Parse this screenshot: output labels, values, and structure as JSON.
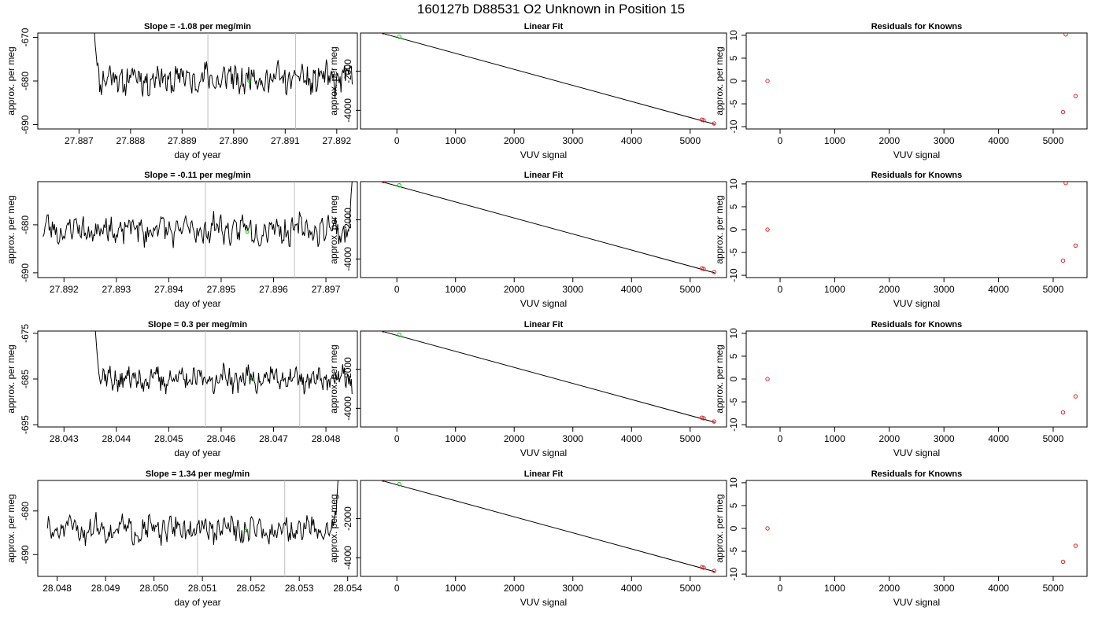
{
  "figure": {
    "title": "160127b     D88531    O2 Unknown in Position  15"
  },
  "chart_data": [
    {
      "id": "r1-drift",
      "type": "line",
      "row": 0,
      "col": 0,
      "title": "Slope =  -1.08  per meg/min",
      "xlabel": "day of year",
      "ylabel": "approx. per meg",
      "xlim": [
        27.8862,
        27.8924
      ],
      "ylim": [
        -691,
        -669
      ],
      "xticks": [
        27.887,
        27.888,
        27.889,
        27.89,
        27.891,
        27.892
      ],
      "xtick_labels": [
        "27.887",
        "27.888",
        "27.889",
        "27.890",
        "27.891",
        "27.892"
      ],
      "yticks": [
        -690,
        -680,
        -670
      ],
      "ytick_labels": [
        "-690",
        "-680",
        "-670"
      ],
      "x_start": 27.8873,
      "x_end": 27.8923,
      "start_value": -669.0,
      "start_len": 8,
      "end_value": null,
      "baseline": -679.5,
      "amplitude": 2.3,
      "seed": 11,
      "vlines": [
        27.8895,
        27.8912
      ],
      "green_point": {
        "x": 27.8903,
        "y": -680.0
      }
    },
    {
      "id": "r1-fit",
      "type": "scatter",
      "row": 0,
      "col": 1,
      "title": "Linear Fit",
      "xlabel": "VUV signal",
      "ylabel": "approx. per meg",
      "xlim": [
        -620,
        5620
      ],
      "ylim": [
        -4950,
        -50
      ],
      "xticks": [
        0,
        1000,
        2000,
        3000,
        4000,
        5000
      ],
      "xtick_labels": [
        "0",
        "1000",
        "2000",
        "3000",
        "4000",
        "5000"
      ],
      "yticks": [
        -4000,
        -2000
      ],
      "ytick_labels": [
        "-4000",
        "-2000"
      ],
      "line": {
        "x": [
          -510,
          5420
        ],
        "y": [
          150,
          -4710
        ]
      },
      "known_points": [
        {
          "x": -230,
          "y": -20
        },
        {
          "x": 5200,
          "y": -4475
        },
        {
          "x": 5230,
          "y": -4505
        },
        {
          "x": 5410,
          "y": -4670
        }
      ],
      "unknown_points": [
        {
          "x": 40,
          "y": -240
        }
      ]
    },
    {
      "id": "r1-resid",
      "type": "scatter",
      "row": 0,
      "col": 2,
      "title": "Residuals for Knowns",
      "xlabel": "VUV signal",
      "ylabel": "approx. per meg",
      "xlim": [
        -620,
        5620
      ],
      "ylim": [
        -10.5,
        10.5
      ],
      "xticks": [
        0,
        1000,
        2000,
        3000,
        4000,
        5000
      ],
      "xtick_labels": [
        "0",
        "1000",
        "2000",
        "3000",
        "4000",
        "5000"
      ],
      "yticks": [
        -10,
        -5,
        0,
        5,
        10
      ],
      "ytick_labels": [
        "-10",
        "-5",
        "0",
        "5",
        "10"
      ],
      "points": [
        {
          "x": -230,
          "y": 0.0
        },
        {
          "x": 5230,
          "y": 10.2
        },
        {
          "x": 5180,
          "y": -6.8
        },
        {
          "x": 5410,
          "y": -3.3
        }
      ]
    },
    {
      "id": "r2-drift",
      "type": "line",
      "row": 1,
      "col": 0,
      "title": "Slope =  -0.11  per meg/min",
      "xlabel": "day of year",
      "ylabel": "approx. per meg",
      "xlim": [
        27.8915,
        27.8976
      ],
      "ylim": [
        -691,
        -671
      ],
      "xticks": [
        27.892,
        27.893,
        27.894,
        27.895,
        27.896,
        27.897
      ],
      "xtick_labels": [
        "27.892",
        "27.893",
        "27.894",
        "27.895",
        "27.896",
        "27.897"
      ],
      "yticks": [
        -690,
        -680
      ],
      "ytick_labels": [
        "-690",
        "-680"
      ],
      "x_start": 27.8916,
      "x_end": 27.8975,
      "start_value": null,
      "end_value": -671,
      "end_len": 5,
      "baseline": -681.0,
      "amplitude": 2.0,
      "seed": 23,
      "vlines": [
        27.8947,
        27.8964
      ],
      "green_point": {
        "x": 27.8955,
        "y": -681.5
      }
    },
    {
      "id": "r2-fit",
      "type": "scatter",
      "row": 1,
      "col": 1,
      "title": "Linear Fit",
      "xlabel": "VUV signal",
      "ylabel": "approx. per meg",
      "xlim": [
        -620,
        5620
      ],
      "ylim": [
        -4950,
        -50
      ],
      "xticks": [
        0,
        1000,
        2000,
        3000,
        4000,
        5000
      ],
      "xtick_labels": [
        "0",
        "1000",
        "2000",
        "3000",
        "4000",
        "5000"
      ],
      "yticks": [
        -4000,
        -2000
      ],
      "ytick_labels": [
        "-4000",
        "-2000"
      ],
      "line": {
        "x": [
          -510,
          5420
        ],
        "y": [
          150,
          -4710
        ]
      },
      "known_points": [
        {
          "x": -230,
          "y": -20
        },
        {
          "x": 5200,
          "y": -4475
        },
        {
          "x": 5230,
          "y": -4505
        },
        {
          "x": 5410,
          "y": -4670
        }
      ],
      "unknown_points": [
        {
          "x": 40,
          "y": -240
        }
      ]
    },
    {
      "id": "r2-resid",
      "type": "scatter",
      "row": 1,
      "col": 2,
      "title": "Residuals for Knowns",
      "xlabel": "VUV signal",
      "ylabel": "approx. per meg",
      "xlim": [
        -620,
        5620
      ],
      "ylim": [
        -10.5,
        10.5
      ],
      "xticks": [
        0,
        1000,
        2000,
        3000,
        4000,
        5000
      ],
      "xtick_labels": [
        "0",
        "1000",
        "2000",
        "3000",
        "4000",
        "5000"
      ],
      "yticks": [
        -10,
        -5,
        0,
        5,
        10
      ],
      "ytick_labels": [
        "-10",
        "-5",
        "0",
        "5",
        "10"
      ],
      "points": [
        {
          "x": -230,
          "y": 0.0
        },
        {
          "x": 5230,
          "y": 10.2
        },
        {
          "x": 5180,
          "y": -6.8
        },
        {
          "x": 5410,
          "y": -3.5
        }
      ]
    },
    {
      "id": "r3-drift",
      "type": "line",
      "row": 2,
      "col": 0,
      "title": "Slope =  0.3  per meg/min",
      "xlabel": "day of year",
      "ylabel": "approx. per meg",
      "xlim": [
        28.0425,
        28.0486
      ],
      "ylim": [
        -695.5,
        -674.5
      ],
      "xticks": [
        28.043,
        28.044,
        28.045,
        28.046,
        28.047,
        28.048
      ],
      "xtick_labels": [
        "28.043",
        "28.044",
        "28.045",
        "28.046",
        "28.047",
        "28.048"
      ],
      "yticks": [
        -695,
        -685,
        -675
      ],
      "ytick_labels": [
        "-695",
        "-685",
        "-675"
      ],
      "x_start": 28.0436,
      "x_end": 28.0485,
      "start_value": -674.5,
      "start_len": 8,
      "end_value": null,
      "baseline": -685.0,
      "amplitude": 1.8,
      "seed": 37,
      "vlines": [
        28.0457,
        28.0475
      ],
      "green_point": {
        "x": 28.0466,
        "y": -685.0
      }
    },
    {
      "id": "r3-fit",
      "type": "scatter",
      "row": 2,
      "col": 1,
      "title": "Linear Fit",
      "xlabel": "VUV signal",
      "ylabel": "approx. per meg",
      "xlim": [
        -620,
        5620
      ],
      "ylim": [
        -4950,
        -50
      ],
      "xticks": [
        0,
        1000,
        2000,
        3000,
        4000,
        5000
      ],
      "xtick_labels": [
        "0",
        "1000",
        "2000",
        "3000",
        "4000",
        "5000"
      ],
      "yticks": [
        -4000,
        -2000
      ],
      "ytick_labels": [
        "-4000",
        "-2000"
      ],
      "line": {
        "x": [
          -510,
          5420
        ],
        "y": [
          150,
          -4710
        ]
      },
      "known_points": [
        {
          "x": -230,
          "y": -20
        },
        {
          "x": 5200,
          "y": -4475
        },
        {
          "x": 5230,
          "y": -4505
        },
        {
          "x": 5410,
          "y": -4670
        }
      ],
      "unknown_points": [
        {
          "x": 40,
          "y": -240
        }
      ]
    },
    {
      "id": "r3-resid",
      "type": "scatter",
      "row": 2,
      "col": 2,
      "title": "Residuals for Knowns",
      "xlabel": "VUV signal",
      "ylabel": "approx. per meg",
      "xlim": [
        -620,
        5620
      ],
      "ylim": [
        -10.5,
        10.5
      ],
      "xticks": [
        0,
        1000,
        2000,
        3000,
        4000,
        5000
      ],
      "xtick_labels": [
        "0",
        "1000",
        "2000",
        "3000",
        "4000",
        "5000"
      ],
      "yticks": [
        -10,
        -5,
        0,
        5,
        10
      ],
      "ytick_labels": [
        "-10",
        "-5",
        "0",
        "5",
        "10"
      ],
      "points": [
        {
          "x": -230,
          "y": 0.0
        },
        {
          "x": 5180,
          "y": -7.3
        },
        {
          "x": 5410,
          "y": -3.8
        }
      ]
    },
    {
      "id": "r4-drift",
      "type": "line",
      "row": 3,
      "col": 0,
      "title": "Slope =  1.34  per meg/min",
      "xlabel": "day of year",
      "ylabel": "approx. per meg",
      "xlim": [
        28.0476,
        28.0542
      ],
      "ylim": [
        -695,
        -673
      ],
      "xticks": [
        28.048,
        28.049,
        28.05,
        28.051,
        28.052,
        28.053,
        28.054
      ],
      "xtick_labels": [
        "28.048",
        "28.049",
        "28.050",
        "28.051",
        "28.052",
        "28.053",
        "28.054"
      ],
      "yticks": [
        -690,
        -680
      ],
      "ytick_labels": [
        "-690",
        "-680"
      ],
      "x_start": 28.0478,
      "x_end": 28.0538,
      "start_value": null,
      "end_value": -673,
      "end_len": 5,
      "baseline": -684.2,
      "amplitude": 2.0,
      "seed": 51,
      "vlines": [
        28.0509,
        28.0527
      ],
      "green_point": {
        "x": 28.0519,
        "y": -684.5
      }
    },
    {
      "id": "r4-fit",
      "type": "scatter",
      "row": 3,
      "col": 1,
      "title": "Linear Fit",
      "xlabel": "VUV signal",
      "ylabel": "approx. per meg",
      "xlim": [
        -620,
        5620
      ],
      "ylim": [
        -4950,
        -50
      ],
      "xticks": [
        0,
        1000,
        2000,
        3000,
        4000,
        5000
      ],
      "xtick_labels": [
        "0",
        "1000",
        "2000",
        "3000",
        "4000",
        "5000"
      ],
      "yticks": [
        -4000,
        -2000
      ],
      "ytick_labels": [
        "-4000",
        "-2000"
      ],
      "line": {
        "x": [
          -510,
          5420
        ],
        "y": [
          150,
          -4710
        ]
      },
      "known_points": [
        {
          "x": -230,
          "y": -20
        },
        {
          "x": 5200,
          "y": -4475
        },
        {
          "x": 5230,
          "y": -4505
        },
        {
          "x": 5410,
          "y": -4670
        }
      ],
      "unknown_points": [
        {
          "x": 40,
          "y": -240
        }
      ]
    },
    {
      "id": "r4-resid",
      "type": "scatter",
      "row": 3,
      "col": 2,
      "title": "Residuals for Knowns",
      "xlabel": "VUV signal",
      "ylabel": "approx. per meg",
      "xlim": [
        -620,
        5620
      ],
      "ylim": [
        -10.5,
        10.5
      ],
      "xticks": [
        0,
        1000,
        2000,
        3000,
        4000,
        5000
      ],
      "xtick_labels": [
        "0",
        "1000",
        "2000",
        "3000",
        "4000",
        "5000"
      ],
      "yticks": [
        -10,
        -5,
        0,
        5,
        10
      ],
      "ytick_labels": [
        "-10",
        "-5",
        "0",
        "5",
        "10"
      ],
      "points": [
        {
          "x": -230,
          "y": 0.0
        },
        {
          "x": 5180,
          "y": -7.3
        },
        {
          "x": 5410,
          "y": -3.8
        }
      ]
    }
  ],
  "colors": {
    "line": "#000000",
    "vline": "#bebebe",
    "known_point": "#d62728",
    "unknown_point": "#00cc00",
    "axes": "#000000"
  }
}
